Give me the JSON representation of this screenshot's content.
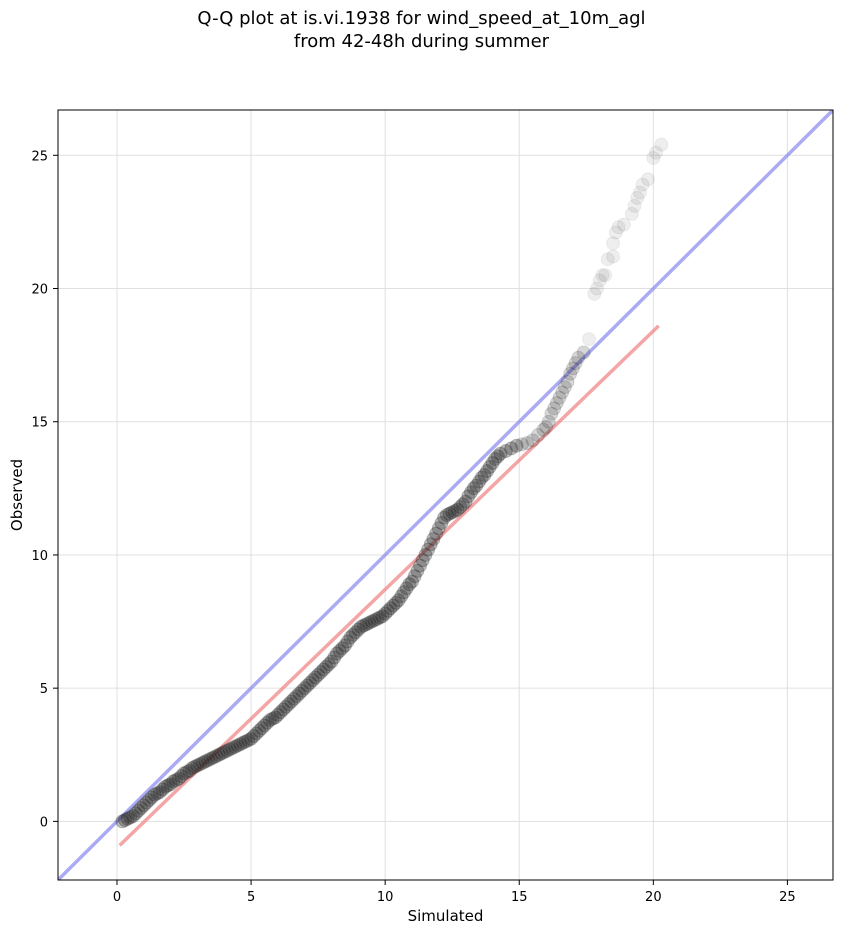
{
  "chart_data": {
    "type": "scatter",
    "title_line1": "Q-Q plot at is.vi.1938 for wind_speed_at_10m_agl",
    "title_line2": "from 42-48h during summer",
    "xlabel": "Simulated",
    "ylabel": "Observed",
    "xlim": [
      -2.2,
      26.7
    ],
    "ylim": [
      -2.2,
      26.7
    ],
    "xticks": [
      0,
      5,
      10,
      15,
      20,
      25
    ],
    "yticks": [
      0,
      5,
      10,
      15,
      20,
      25
    ],
    "grid": true,
    "reference_line": {
      "name": "1:1 line",
      "color": "#8888ee",
      "slope": 1,
      "intercept": 0
    },
    "fit_line": {
      "name": "fit",
      "color": "#f08080",
      "x": [
        0.1,
        20.2
      ],
      "y": [
        -0.9,
        18.6
      ]
    },
    "points_color": "#222222",
    "points": [
      [
        0.2,
        0.0
      ],
      [
        0.3,
        0.05
      ],
      [
        0.4,
        0.1
      ],
      [
        0.5,
        0.15
      ],
      [
        0.6,
        0.2
      ],
      [
        0.7,
        0.3
      ],
      [
        0.8,
        0.4
      ],
      [
        0.9,
        0.5
      ],
      [
        1.0,
        0.6
      ],
      [
        1.1,
        0.7
      ],
      [
        1.2,
        0.8
      ],
      [
        1.3,
        0.9
      ],
      [
        1.4,
        1.0
      ],
      [
        1.5,
        1.05
      ],
      [
        1.6,
        1.1
      ],
      [
        1.7,
        1.2
      ],
      [
        1.8,
        1.3
      ],
      [
        1.9,
        1.35
      ],
      [
        2.0,
        1.4
      ],
      [
        2.1,
        1.5
      ],
      [
        2.2,
        1.55
      ],
      [
        2.3,
        1.6
      ],
      [
        2.4,
        1.7
      ],
      [
        2.5,
        1.8
      ],
      [
        2.6,
        1.85
      ],
      [
        2.7,
        1.9
      ],
      [
        2.8,
        2.0
      ],
      [
        2.9,
        2.05
      ],
      [
        3.0,
        2.1
      ],
      [
        3.1,
        2.15
      ],
      [
        3.2,
        2.2
      ],
      [
        3.3,
        2.25
      ],
      [
        3.4,
        2.3
      ],
      [
        3.5,
        2.35
      ],
      [
        3.6,
        2.4
      ],
      [
        3.7,
        2.45
      ],
      [
        3.8,
        2.5
      ],
      [
        3.9,
        2.55
      ],
      [
        4.0,
        2.6
      ],
      [
        4.1,
        2.65
      ],
      [
        4.2,
        2.7
      ],
      [
        4.3,
        2.75
      ],
      [
        4.4,
        2.8
      ],
      [
        4.5,
        2.85
      ],
      [
        4.6,
        2.9
      ],
      [
        4.7,
        2.95
      ],
      [
        4.8,
        3.0
      ],
      [
        4.9,
        3.05
      ],
      [
        5.0,
        3.1
      ],
      [
        5.1,
        3.2
      ],
      [
        5.2,
        3.3
      ],
      [
        5.3,
        3.4
      ],
      [
        5.4,
        3.5
      ],
      [
        5.5,
        3.6
      ],
      [
        5.6,
        3.7
      ],
      [
        5.7,
        3.8
      ],
      [
        5.8,
        3.85
      ],
      [
        5.9,
        3.9
      ],
      [
        6.0,
        4.0
      ],
      [
        6.1,
        4.1
      ],
      [
        6.2,
        4.2
      ],
      [
        6.3,
        4.3
      ],
      [
        6.4,
        4.4
      ],
      [
        6.5,
        4.5
      ],
      [
        6.6,
        4.6
      ],
      [
        6.7,
        4.7
      ],
      [
        6.8,
        4.8
      ],
      [
        6.9,
        4.9
      ],
      [
        7.0,
        5.0
      ],
      [
        7.1,
        5.1
      ],
      [
        7.2,
        5.2
      ],
      [
        7.3,
        5.3
      ],
      [
        7.4,
        5.4
      ],
      [
        7.5,
        5.5
      ],
      [
        7.6,
        5.6
      ],
      [
        7.7,
        5.7
      ],
      [
        7.8,
        5.8
      ],
      [
        7.9,
        5.9
      ],
      [
        8.0,
        6.0
      ],
      [
        8.1,
        6.15
      ],
      [
        8.2,
        6.3
      ],
      [
        8.3,
        6.4
      ],
      [
        8.4,
        6.5
      ],
      [
        8.5,
        6.6
      ],
      [
        8.6,
        6.75
      ],
      [
        8.7,
        6.9
      ],
      [
        8.8,
        7.0
      ],
      [
        8.9,
        7.1
      ],
      [
        9.0,
        7.2
      ],
      [
        9.1,
        7.3
      ],
      [
        9.2,
        7.35
      ],
      [
        9.3,
        7.4
      ],
      [
        9.4,
        7.45
      ],
      [
        9.5,
        7.5
      ],
      [
        9.6,
        7.55
      ],
      [
        9.7,
        7.6
      ],
      [
        9.8,
        7.65
      ],
      [
        9.9,
        7.7
      ],
      [
        10.0,
        7.8
      ],
      [
        10.1,
        7.9
      ],
      [
        10.2,
        8.0
      ],
      [
        10.3,
        8.1
      ],
      [
        10.4,
        8.2
      ],
      [
        10.5,
        8.3
      ],
      [
        10.6,
        8.45
      ],
      [
        10.7,
        8.6
      ],
      [
        10.8,
        8.75
      ],
      [
        10.9,
        8.9
      ],
      [
        11.0,
        9.0
      ],
      [
        11.1,
        9.2
      ],
      [
        11.2,
        9.4
      ],
      [
        11.3,
        9.6
      ],
      [
        11.4,
        9.8
      ],
      [
        11.5,
        10.0
      ],
      [
        11.6,
        10.2
      ],
      [
        11.7,
        10.4
      ],
      [
        11.8,
        10.6
      ],
      [
        11.9,
        10.8
      ],
      [
        12.0,
        11.0
      ],
      [
        12.1,
        11.2
      ],
      [
        12.2,
        11.4
      ],
      [
        12.3,
        11.5
      ],
      [
        12.4,
        11.55
      ],
      [
        12.5,
        11.6
      ],
      [
        12.6,
        11.65
      ],
      [
        12.7,
        11.7
      ],
      [
        12.8,
        11.8
      ],
      [
        12.9,
        11.9
      ],
      [
        13.0,
        12.0
      ],
      [
        13.1,
        12.2
      ],
      [
        13.2,
        12.35
      ],
      [
        13.3,
        12.5
      ],
      [
        13.4,
        12.6
      ],
      [
        13.5,
        12.75
      ],
      [
        13.6,
        12.9
      ],
      [
        13.7,
        13.0
      ],
      [
        13.8,
        13.15
      ],
      [
        13.9,
        13.3
      ],
      [
        14.0,
        13.45
      ],
      [
        14.1,
        13.6
      ],
      [
        14.2,
        13.7
      ],
      [
        14.3,
        13.8
      ],
      [
        14.5,
        13.9
      ],
      [
        14.7,
        14.0
      ],
      [
        14.9,
        14.1
      ],
      [
        15.1,
        14.15
      ],
      [
        15.3,
        14.2
      ],
      [
        15.5,
        14.3
      ],
      [
        15.7,
        14.5
      ],
      [
        15.9,
        14.7
      ],
      [
        16.0,
        14.8
      ],
      [
        16.1,
        15.0
      ],
      [
        16.2,
        15.3
      ],
      [
        16.3,
        15.5
      ],
      [
        16.4,
        15.7
      ],
      [
        16.5,
        15.9
      ],
      [
        16.6,
        16.1
      ],
      [
        16.7,
        16.3
      ],
      [
        16.8,
        16.5
      ],
      [
        16.9,
        16.8
      ],
      [
        17.0,
        17.0
      ],
      [
        17.1,
        17.2
      ],
      [
        17.2,
        17.4
      ],
      [
        17.4,
        17.6
      ],
      [
        17.6,
        18.1
      ],
      [
        17.8,
        19.8
      ],
      [
        17.9,
        20.0
      ],
      [
        18.0,
        20.3
      ],
      [
        18.1,
        20.5
      ],
      [
        18.2,
        20.5
      ],
      [
        18.3,
        21.1
      ],
      [
        18.5,
        21.2
      ],
      [
        18.5,
        21.7
      ],
      [
        18.6,
        22.1
      ],
      [
        18.7,
        22.3
      ],
      [
        18.9,
        22.4
      ],
      [
        19.2,
        22.8
      ],
      [
        19.3,
        23.1
      ],
      [
        19.4,
        23.4
      ],
      [
        19.5,
        23.6
      ],
      [
        19.6,
        23.9
      ],
      [
        19.8,
        24.1
      ],
      [
        20.0,
        24.9
      ],
      [
        20.1,
        25.1
      ],
      [
        20.3,
        25.4
      ]
    ]
  }
}
